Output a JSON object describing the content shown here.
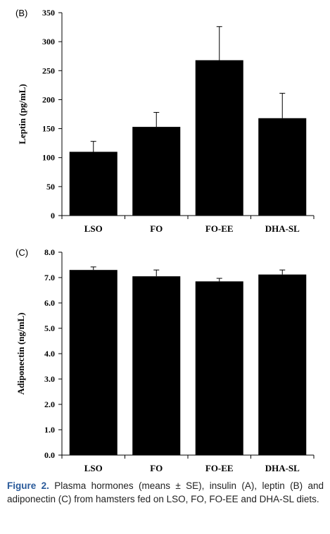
{
  "chart_data": [
    {
      "type": "bar",
      "panel_label": "(B)",
      "ylabel": "Leptin (pg/mL)",
      "categories": [
        "LSO",
        "FO",
        "FO-EE",
        "DHA-SL"
      ],
      "values": [
        110,
        153,
        268,
        168
      ],
      "errors": [
        18,
        25,
        58,
        43
      ],
      "ylim": [
        0,
        350
      ],
      "yticks": [
        "0",
        "50",
        "100",
        "150",
        "200",
        "250",
        "300",
        "350"
      ],
      "grid": false
    },
    {
      "type": "bar",
      "panel_label": "(C)",
      "ylabel": "Adiponectin (ng/mL)",
      "categories": [
        "LSO",
        "FO",
        "FO-EE",
        "DHA-SL"
      ],
      "values": [
        7.3,
        7.05,
        6.85,
        7.12
      ],
      "errors": [
        0.12,
        0.25,
        0.12,
        0.18
      ],
      "ylim": [
        0,
        8
      ],
      "yticks": [
        "0.0",
        "1.0",
        "2.0",
        "3.0",
        "4.0",
        "5.0",
        "6.0",
        "7.0",
        "8.0"
      ],
      "grid": false
    }
  ],
  "caption": {
    "label": "Figure 2.",
    "text": "Plasma hormones (means ± SE), insulin (A), leptin (B) and adiponectin (C) from hamsters fed on LSO, FO, FO-EE and DHA-SL diets."
  },
  "colors": {
    "bar": "#000000",
    "caption_label": "#2a5a9a"
  }
}
